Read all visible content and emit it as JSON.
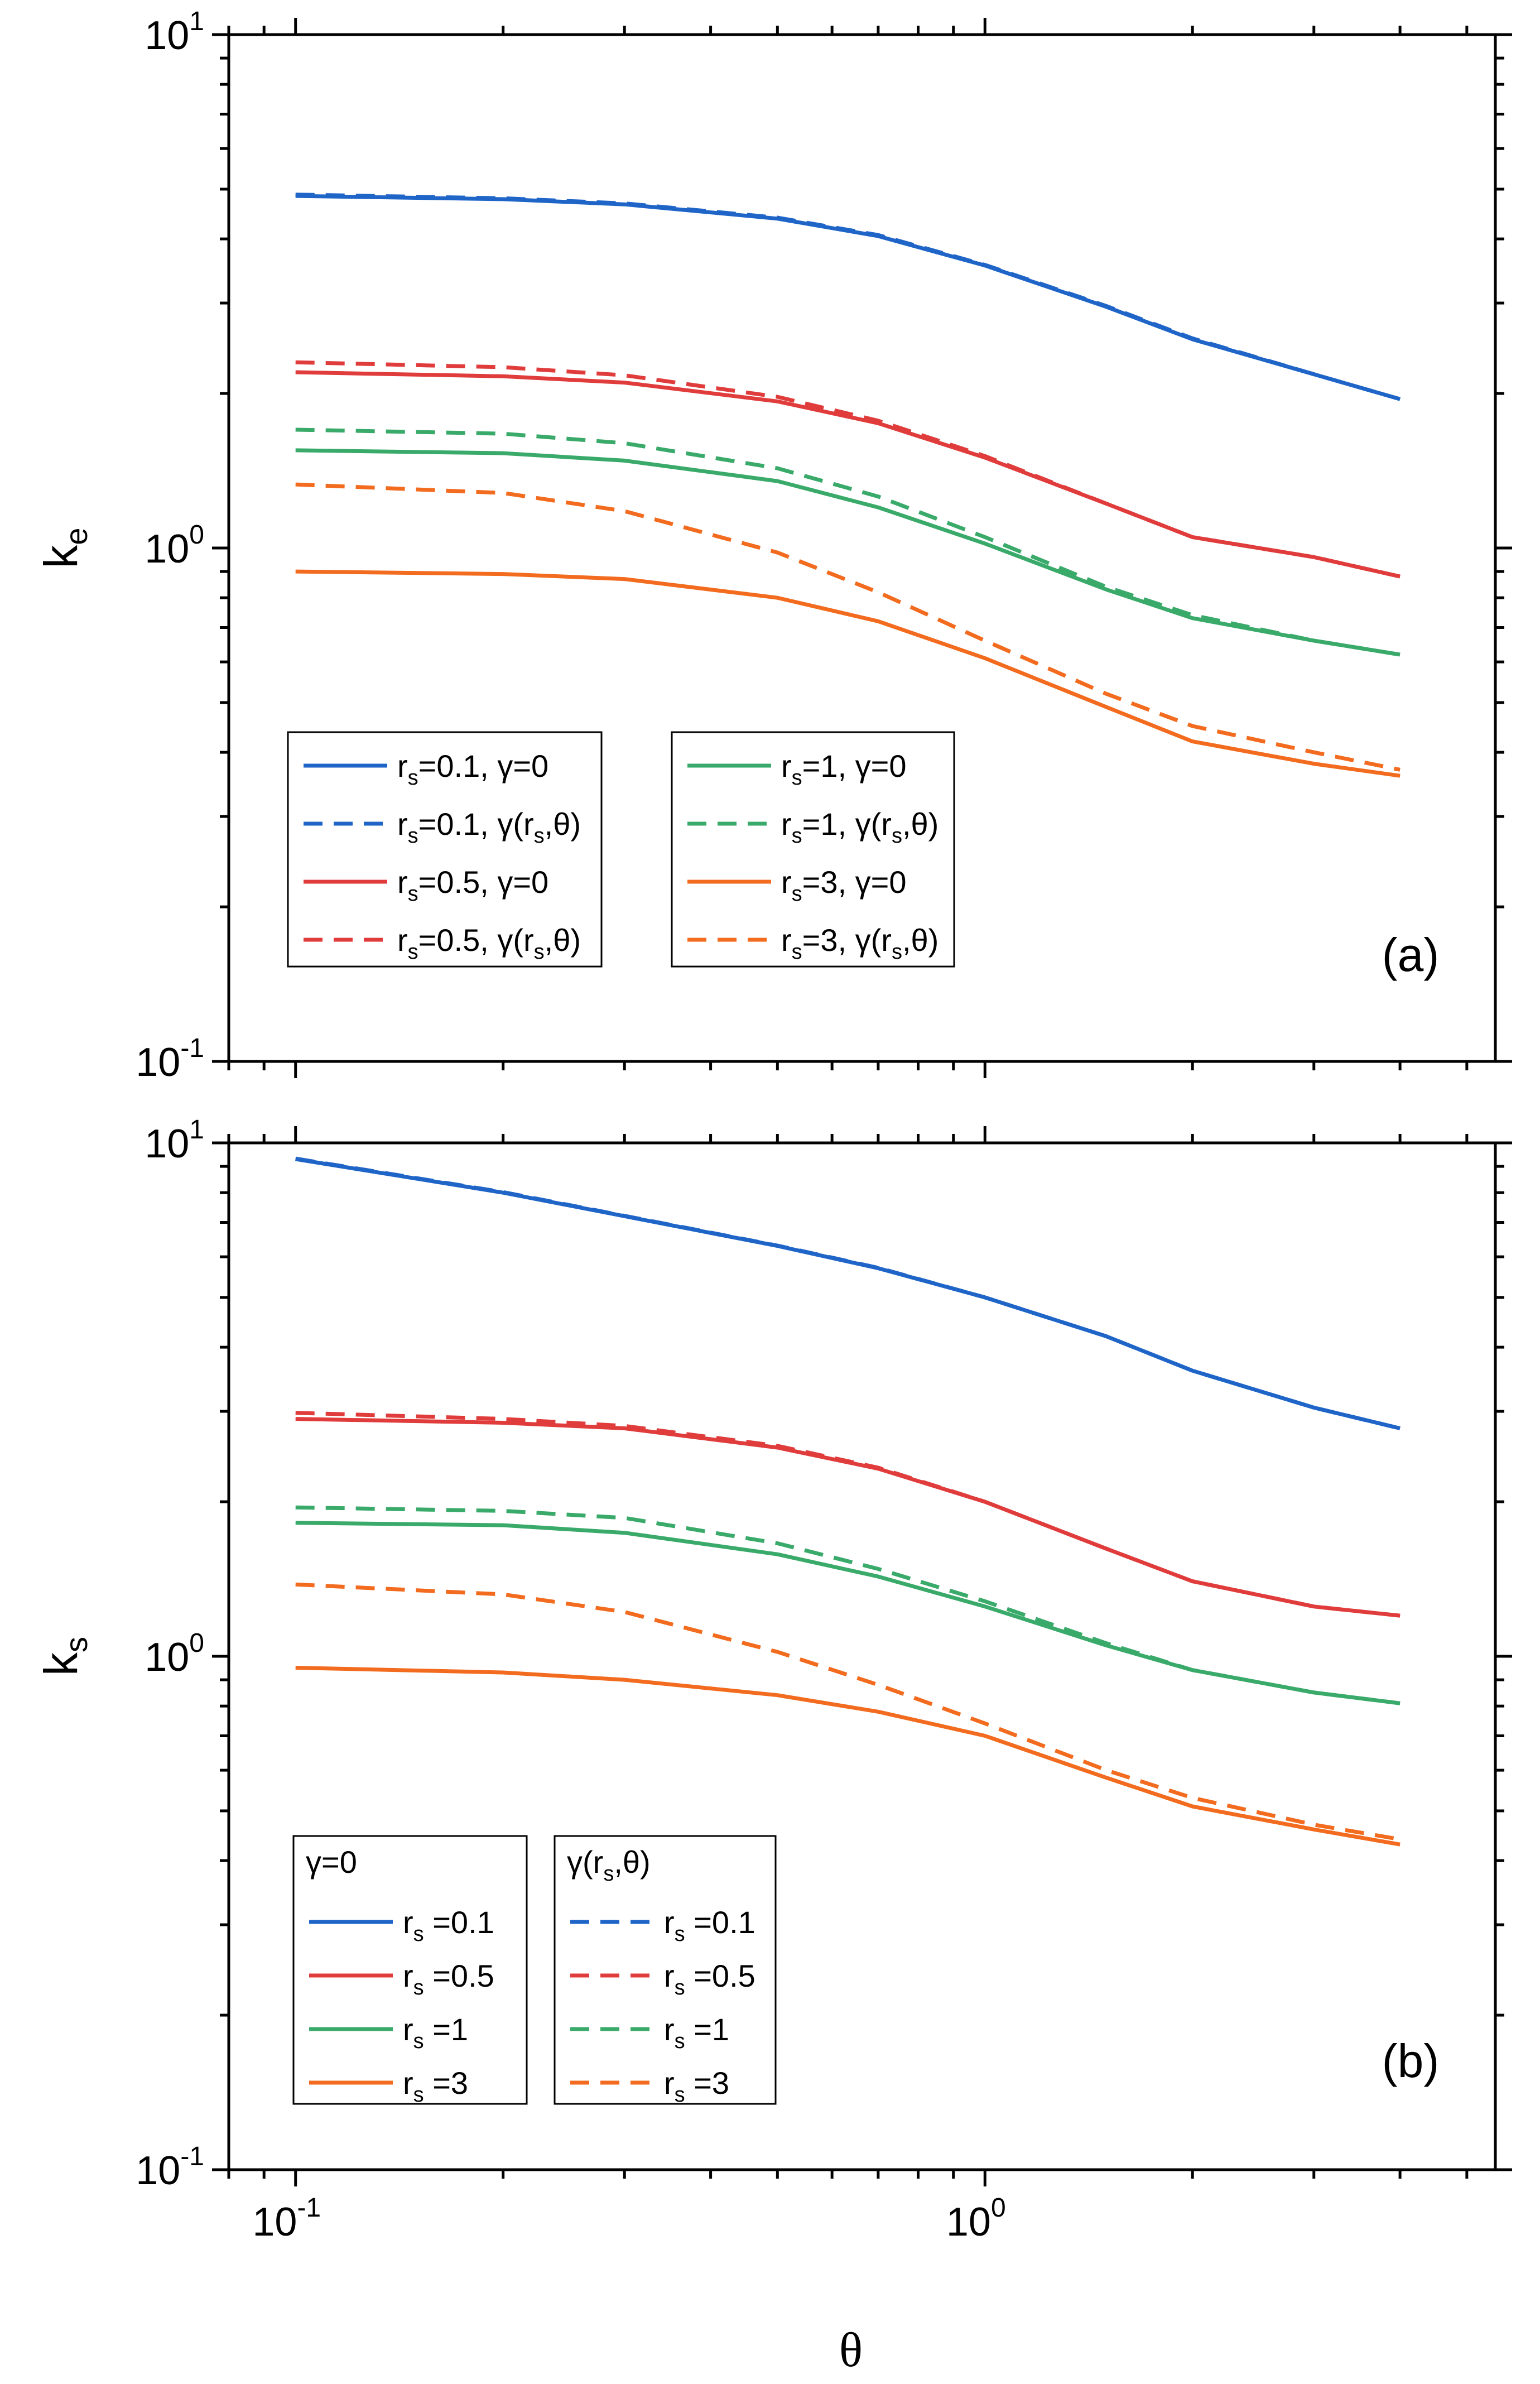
{
  "colors": {
    "rs_0.1": "#1f65c8",
    "rs_0.5": "#e03c3c",
    "rs_1": "#3aaa6a",
    "rs_3": "#f26b1e"
  },
  "chart_data": [
    {
      "id": "a",
      "type": "line",
      "panel_label": "(a)",
      "xlabel": "θ",
      "ylabel_base": "k",
      "ylabel_sub": "e",
      "xscale": "log",
      "yscale": "log",
      "xlim": [
        0.08,
        5.5
      ],
      "ylim": [
        0.1,
        10
      ],
      "x_tick_labels": [
        {
          "base": "10",
          "exp": "-1"
        },
        {
          "base": "10",
          "exp": "0"
        }
      ],
      "y_tick_labels": [
        {
          "base": "10",
          "exp": "-1"
        },
        {
          "base": "10",
          "exp": "0"
        },
        {
          "base": "10",
          "exp": "1"
        }
      ],
      "x": [
        0.1,
        0.2,
        0.3,
        0.5,
        0.7,
        1.0,
        1.5,
        2.0,
        3.0,
        4.0
      ],
      "series": [
        {
          "name": "r_s=0.1, γ=0",
          "rs": "0.1",
          "style": "solid",
          "color": "#1f65c8",
          "values": [
            4.85,
            4.78,
            4.67,
            4.38,
            4.05,
            3.55,
            2.95,
            2.55,
            2.18,
            1.95
          ]
        },
        {
          "name": "r_s=0.1, γ(r_s,θ)",
          "rs": "0.1",
          "style": "dashed",
          "color": "#1f65c8",
          "values": [
            4.88,
            4.8,
            4.69,
            4.4,
            4.07,
            3.56,
            2.96,
            2.56,
            2.18,
            1.95
          ]
        },
        {
          "name": "r_s=0.5, γ=0",
          "rs": "0.5",
          "style": "solid",
          "color": "#e03c3c",
          "values": [
            2.2,
            2.16,
            2.1,
            1.93,
            1.75,
            1.5,
            1.22,
            1.05,
            0.96,
            0.88
          ]
        },
        {
          "name": "r_s=0.5, γ(r_s,θ)",
          "rs": "0.5",
          "style": "dashed",
          "color": "#e03c3c",
          "values": [
            2.3,
            2.25,
            2.17,
            1.97,
            1.77,
            1.51,
            1.22,
            1.05,
            0.96,
            0.88
          ]
        },
        {
          "name": "r_s=1, γ=0",
          "rs": "1",
          "style": "solid",
          "color": "#3aaa6a",
          "values": [
            1.55,
            1.53,
            1.48,
            1.35,
            1.2,
            1.02,
            0.83,
            0.73,
            0.66,
            0.62
          ]
        },
        {
          "name": "r_s=1, γ(r_s,θ)",
          "rs": "1",
          "style": "dashed",
          "color": "#3aaa6a",
          "values": [
            1.7,
            1.67,
            1.6,
            1.43,
            1.26,
            1.05,
            0.84,
            0.74,
            0.66,
            0.62
          ]
        },
        {
          "name": "r_s=3, γ=0",
          "rs": "3",
          "style": "solid",
          "color": "#f26b1e",
          "values": [
            0.9,
            0.89,
            0.87,
            0.8,
            0.72,
            0.61,
            0.49,
            0.42,
            0.38,
            0.36
          ]
        },
        {
          "name": "r_s=3, γ(r_s,θ)",
          "rs": "3",
          "style": "dashed",
          "color": "#f26b1e",
          "values": [
            1.33,
            1.28,
            1.18,
            0.98,
            0.82,
            0.66,
            0.52,
            0.45,
            0.4,
            0.37
          ]
        }
      ],
      "legend": [
        {
          "entries": [
            {
              "rs": "0.1",
              "style": "solid",
              "color": "#1f65c8",
              "pre": "r",
              "sub": "s",
              "post": "=0.1, γ=0"
            },
            {
              "rs": "0.1",
              "style": "dashed",
              "color": "#1f65c8",
              "pre": "r",
              "sub": "s",
              "post": "=0.1, γ(",
              "post2": "r",
              "sub2": "s",
              "post3": ",θ)"
            },
            {
              "rs": "0.5",
              "style": "solid",
              "color": "#e03c3c",
              "pre": "r",
              "sub": "s",
              "post": "=0.5, γ=0"
            },
            {
              "rs": "0.5",
              "style": "dashed",
              "color": "#e03c3c",
              "pre": "r",
              "sub": "s",
              "post": "=0.5, γ(",
              "post2": "r",
              "sub2": "s",
              "post3": ",θ)"
            }
          ]
        },
        {
          "entries": [
            {
              "rs": "1",
              "style": "solid",
              "color": "#3aaa6a",
              "pre": "r",
              "sub": "s",
              "post": "=1, γ=0"
            },
            {
              "rs": "1",
              "style": "dashed",
              "color": "#3aaa6a",
              "pre": "r",
              "sub": "s",
              "post": "=1, γ(",
              "post2": "r",
              "sub2": "s",
              "post3": ",θ)"
            },
            {
              "rs": "3",
              "style": "solid",
              "color": "#f26b1e",
              "pre": "r",
              "sub": "s",
              "post": "=3, γ=0"
            },
            {
              "rs": "3",
              "style": "dashed",
              "color": "#f26b1e",
              "pre": "r",
              "sub": "s",
              "post": "=3, γ(",
              "post2": "r",
              "sub2": "s",
              "post3": ",θ)"
            }
          ]
        }
      ]
    },
    {
      "id": "b",
      "type": "line",
      "panel_label": "(b)",
      "xlabel": "θ",
      "ylabel_base": "k",
      "ylabel_sub": "s",
      "xscale": "log",
      "yscale": "log",
      "xlim": [
        0.08,
        5.5
      ],
      "ylim": [
        0.1,
        10
      ],
      "x_tick_labels": [
        {
          "base": "10",
          "exp": "-1"
        },
        {
          "base": "10",
          "exp": "0"
        }
      ],
      "y_tick_labels": [
        {
          "base": "10",
          "exp": "-1"
        },
        {
          "base": "10",
          "exp": "0"
        },
        {
          "base": "10",
          "exp": "1"
        }
      ],
      "x": [
        0.1,
        0.2,
        0.3,
        0.5,
        0.7,
        1.0,
        1.5,
        2.0,
        3.0,
        4.0
      ],
      "series": [
        {
          "name": "r_s =0.1 (γ=0)",
          "rs": "0.1",
          "style": "solid",
          "color": "#1f65c8",
          "values": [
            9.3,
            8.0,
            7.2,
            6.3,
            5.7,
            5.0,
            4.2,
            3.6,
            3.05,
            2.78
          ]
        },
        {
          "name": "r_s =0.1 (γ(r_s,θ))",
          "rs": "0.1",
          "style": "dashed",
          "color": "#1f65c8",
          "values": [
            9.32,
            8.02,
            7.21,
            6.31,
            5.71,
            5.0,
            4.2,
            3.6,
            3.05,
            2.78
          ]
        },
        {
          "name": "r_s =0.5 (γ=0)",
          "rs": "0.5",
          "style": "solid",
          "color": "#e03c3c",
          "values": [
            2.9,
            2.85,
            2.78,
            2.55,
            2.32,
            2.0,
            1.62,
            1.4,
            1.25,
            1.2
          ]
        },
        {
          "name": "r_s =0.5 (γ(r_s,θ))",
          "rs": "0.5",
          "style": "dashed",
          "color": "#e03c3c",
          "values": [
            2.98,
            2.9,
            2.81,
            2.57,
            2.33,
            2.0,
            1.62,
            1.4,
            1.25,
            1.2
          ]
        },
        {
          "name": "r_s =1 (γ=0)",
          "rs": "1",
          "style": "solid",
          "color": "#3aaa6a",
          "values": [
            1.82,
            1.8,
            1.74,
            1.58,
            1.43,
            1.25,
            1.05,
            0.94,
            0.85,
            0.81
          ]
        },
        {
          "name": "r_s =1 (γ(r_s,θ))",
          "rs": "1",
          "style": "dashed",
          "color": "#3aaa6a",
          "values": [
            1.95,
            1.92,
            1.86,
            1.66,
            1.48,
            1.28,
            1.06,
            0.94,
            0.85,
            0.81
          ]
        },
        {
          "name": "r_s =3 (γ=0)",
          "rs": "3",
          "style": "solid",
          "color": "#f26b1e",
          "values": [
            0.95,
            0.93,
            0.9,
            0.84,
            0.78,
            0.7,
            0.58,
            0.51,
            0.46,
            0.43
          ]
        },
        {
          "name": "r_s =3 (γ(r_s,θ))",
          "rs": "3",
          "style": "dashed",
          "color": "#f26b1e",
          "values": [
            1.38,
            1.32,
            1.22,
            1.02,
            0.88,
            0.74,
            0.6,
            0.53,
            0.47,
            0.44
          ]
        }
      ],
      "legend": [
        {
          "title": "γ=0",
          "entries": [
            {
              "rs": "0.1",
              "style": "solid",
              "color": "#1f65c8",
              "pre": "r",
              "sub": "s",
              "post": " =0.1"
            },
            {
              "rs": "0.5",
              "style": "solid",
              "color": "#e03c3c",
              "pre": "r",
              "sub": "s",
              "post": " =0.5"
            },
            {
              "rs": "1",
              "style": "solid",
              "color": "#3aaa6a",
              "pre": "r",
              "sub": "s",
              "post": " =1"
            },
            {
              "rs": "3",
              "style": "solid",
              "color": "#f26b1e",
              "pre": "r",
              "sub": "s",
              "post": " =3"
            }
          ]
        },
        {
          "title": "γ(r_s,θ)",
          "title_pre": "γ(",
          "title_mid": "r",
          "title_sub": "s",
          "title_post": ",θ)",
          "entries": [
            {
              "rs": "0.1",
              "style": "dashed",
              "color": "#1f65c8",
              "pre": "r",
              "sub": "s",
              "post": " =0.1"
            },
            {
              "rs": "0.5",
              "style": "dashed",
              "color": "#e03c3c",
              "pre": "r",
              "sub": "s",
              "post": " =0.5"
            },
            {
              "rs": "1",
              "style": "dashed",
              "color": "#3aaa6a",
              "pre": "r",
              "sub": "s",
              "post": " =1"
            },
            {
              "rs": "3",
              "style": "dashed",
              "color": "#f26b1e",
              "pre": "r",
              "sub": "s",
              "post": " =3"
            }
          ]
        }
      ]
    }
  ]
}
